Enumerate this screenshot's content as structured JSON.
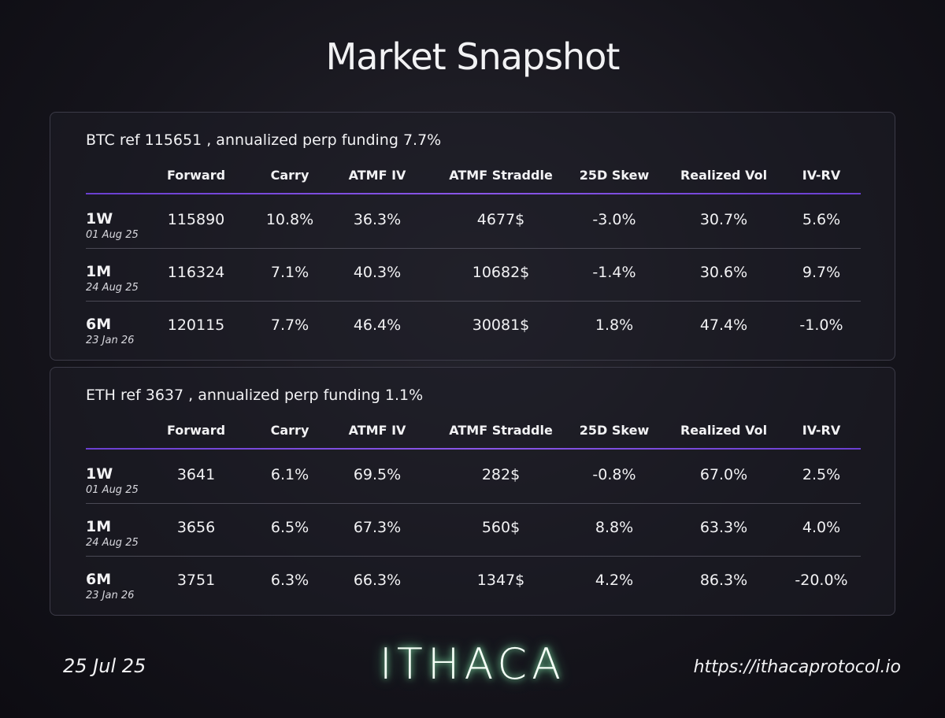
{
  "title": "Market Snapshot",
  "tables": [
    {
      "caption": "BTC ref 115651 , annualized perp funding 7.7%",
      "headers": [
        "Forward",
        "Carry",
        "ATMF IV",
        "ATMF Straddle",
        "25D Skew",
        "Realized Vol",
        "IV-RV"
      ],
      "rows": [
        {
          "tenor": "1W",
          "date": "01 Aug 25",
          "cells": [
            "115890",
            "10.8%",
            "36.3%",
            "4677$",
            "-3.0%",
            "30.7%",
            "5.6%"
          ]
        },
        {
          "tenor": "1M",
          "date": "24 Aug 25",
          "cells": [
            "116324",
            "7.1%",
            "40.3%",
            "10682$",
            "-1.4%",
            "30.6%",
            "9.7%"
          ]
        },
        {
          "tenor": "6M",
          "date": "23 Jan 26",
          "cells": [
            "120115",
            "7.7%",
            "46.4%",
            "30081$",
            "1.8%",
            "47.4%",
            "-1.0%"
          ]
        }
      ]
    },
    {
      "caption": "ETH ref 3637 , annualized perp funding 1.1%",
      "headers": [
        "Forward",
        "Carry",
        "ATMF IV",
        "ATMF Straddle",
        "25D Skew",
        "Realized Vol",
        "IV-RV"
      ],
      "rows": [
        {
          "tenor": "1W",
          "date": "01 Aug 25",
          "cells": [
            "3641",
            "6.1%",
            "69.5%",
            "282$",
            "-0.8%",
            "67.0%",
            "2.5%"
          ]
        },
        {
          "tenor": "1M",
          "date": "24 Aug 25",
          "cells": [
            "3656",
            "6.5%",
            "67.3%",
            "560$",
            "8.8%",
            "63.3%",
            "4.0%"
          ]
        },
        {
          "tenor": "6M",
          "date": "23 Jan 26",
          "cells": [
            "3751",
            "6.3%",
            "66.3%",
            "1347$",
            "4.2%",
            "86.3%",
            "-20.0%"
          ]
        }
      ]
    }
  ],
  "footer": {
    "date": "25 Jul 25",
    "logo": "ITHACA",
    "url": "https://ithacaprotocol.io"
  }
}
